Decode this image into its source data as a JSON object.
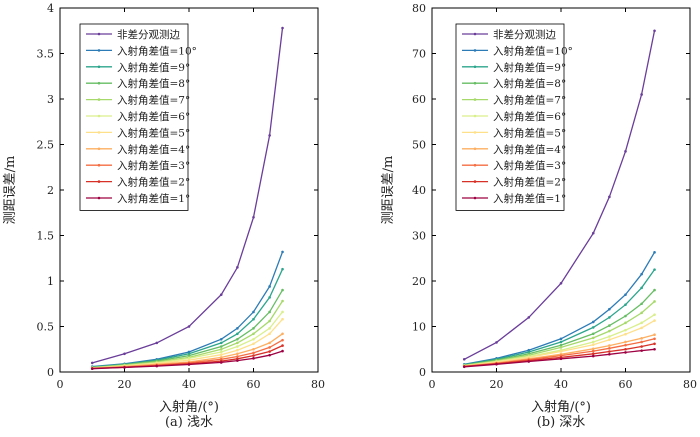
{
  "figure": {
    "width": 700,
    "height": 432
  },
  "chart_data": [
    {
      "type": "line",
      "caption": "(a) 浅水",
      "xlabel": "入射角/(°)",
      "ylabel": "测距误差/m",
      "xlim": [
        0,
        80
      ],
      "ylim": [
        0,
        4
      ],
      "xticks": [
        0,
        20,
        40,
        60,
        80
      ],
      "yticks": [
        0,
        0.5,
        1,
        1.5,
        2,
        2.5,
        3,
        3.5,
        4
      ],
      "yticklabels": [
        "0",
        "0.5",
        "1",
        "1.5",
        "2",
        "2.5",
        "3",
        "3.5",
        "4"
      ],
      "legend_position": "top-left",
      "x": [
        10,
        20,
        30,
        40,
        50,
        55,
        60,
        65,
        69
      ],
      "series": [
        {
          "name": "非差分观测边",
          "color": "#6a3d9a",
          "values": [
            0.1,
            0.2,
            0.32,
            0.5,
            0.85,
            1.15,
            1.7,
            2.6,
            3.78
          ]
        },
        {
          "name": "入射角差值=10°",
          "color": "#2c7bb6",
          "values": [
            0.06,
            0.09,
            0.14,
            0.22,
            0.36,
            0.48,
            0.66,
            0.94,
            1.32
          ]
        },
        {
          "name": "入射角差值=9°",
          "color": "#2ca58d",
          "values": [
            0.055,
            0.085,
            0.13,
            0.2,
            0.32,
            0.42,
            0.58,
            0.82,
            1.13
          ]
        },
        {
          "name": "入射角差值=8°",
          "color": "#66bd63",
          "values": [
            0.05,
            0.08,
            0.12,
            0.18,
            0.28,
            0.36,
            0.48,
            0.66,
            0.9
          ]
        },
        {
          "name": "入射角差值=7°",
          "color": "#a6d96a",
          "values": [
            0.048,
            0.075,
            0.11,
            0.16,
            0.25,
            0.32,
            0.42,
            0.56,
            0.78
          ]
        },
        {
          "name": "入射角差值=6°",
          "color": "#d9ef8b",
          "values": [
            0.046,
            0.07,
            0.1,
            0.15,
            0.22,
            0.28,
            0.36,
            0.48,
            0.66
          ]
        },
        {
          "name": "入射角差值=5°",
          "color": "#fee08b",
          "values": [
            0.044,
            0.065,
            0.095,
            0.13,
            0.19,
            0.24,
            0.31,
            0.42,
            0.58
          ]
        },
        {
          "name": "入射角差值=4°",
          "color": "#fdae61",
          "values": [
            0.042,
            0.06,
            0.085,
            0.11,
            0.16,
            0.2,
            0.25,
            0.32,
            0.42
          ]
        },
        {
          "name": "入射角差值=3°",
          "color": "#f46d43",
          "values": [
            0.04,
            0.055,
            0.075,
            0.1,
            0.14,
            0.17,
            0.21,
            0.27,
            0.35
          ]
        },
        {
          "name": "入射角差值=2°",
          "color": "#d73027",
          "values": [
            0.038,
            0.052,
            0.07,
            0.09,
            0.12,
            0.145,
            0.18,
            0.225,
            0.29
          ]
        },
        {
          "name": "入射角差值=1°",
          "color": "#9e0142",
          "values": [
            0.036,
            0.05,
            0.065,
            0.082,
            0.105,
            0.125,
            0.15,
            0.185,
            0.23
          ]
        }
      ]
    },
    {
      "type": "line",
      "caption": "(b) 深水",
      "xlabel": "入射角/(°)",
      "ylabel": "测距误差/m",
      "xlim": [
        0,
        80
      ],
      "ylim": [
        0,
        80
      ],
      "xticks": [
        0,
        20,
        40,
        60,
        80
      ],
      "yticks": [
        0,
        10,
        20,
        30,
        40,
        50,
        60,
        70,
        80
      ],
      "yticklabels": [
        "0",
        "10",
        "20",
        "30",
        "40",
        "50",
        "60",
        "70",
        "80"
      ],
      "legend_position": "top-left",
      "x": [
        10,
        20,
        30,
        40,
        50,
        55,
        60,
        65,
        69
      ],
      "series": [
        {
          "name": "非差分观测边",
          "color": "#6a3d9a",
          "values": [
            2.8,
            6.5,
            12.0,
            19.5,
            30.5,
            38.5,
            48.5,
            61.0,
            75.0
          ]
        },
        {
          "name": "入射角差值=10°",
          "color": "#2c7bb6",
          "values": [
            1.7,
            3.0,
            4.8,
            7.3,
            11.0,
            13.8,
            17.0,
            21.5,
            26.3
          ]
        },
        {
          "name": "入射角差值=9°",
          "color": "#2ca58d",
          "values": [
            1.6,
            2.8,
            4.4,
            6.6,
            9.8,
            12.0,
            14.8,
            18.5,
            22.5
          ]
        },
        {
          "name": "入射角差值=8°",
          "color": "#66bd63",
          "values": [
            1.5,
            2.6,
            4.0,
            5.9,
            8.4,
            10.2,
            12.3,
            15.0,
            18.0
          ]
        },
        {
          "name": "入射角差值=7°",
          "color": "#a6d96a",
          "values": [
            1.45,
            2.45,
            3.7,
            5.4,
            7.5,
            9.0,
            10.8,
            13.0,
            15.5
          ]
        },
        {
          "name": "入射角差值=6°",
          "color": "#d9ef8b",
          "values": [
            1.4,
            2.3,
            3.4,
            4.8,
            6.6,
            7.8,
            9.2,
            10.8,
            12.6
          ]
        },
        {
          "name": "入射角差值=5°",
          "color": "#fee08b",
          "values": [
            1.35,
            2.2,
            3.2,
            4.5,
            6.0,
            7.1,
            8.3,
            9.7,
            11.3
          ]
        },
        {
          "name": "入射角差值=4°",
          "color": "#fdae61",
          "values": [
            1.3,
            2.0,
            2.9,
            3.9,
            5.1,
            5.8,
            6.6,
            7.4,
            8.2
          ]
        },
        {
          "name": "入射角差值=3°",
          "color": "#f46d43",
          "values": [
            1.25,
            1.9,
            2.7,
            3.6,
            4.6,
            5.2,
            5.9,
            6.6,
            7.3
          ]
        },
        {
          "name": "入射角差值=2°",
          "color": "#d73027",
          "values": [
            1.2,
            1.8,
            2.5,
            3.2,
            4.0,
            4.5,
            5.0,
            5.6,
            6.2
          ]
        },
        {
          "name": "入射角差值=1°",
          "color": "#9e0142",
          "values": [
            1.15,
            1.7,
            2.3,
            2.9,
            3.5,
            3.9,
            4.3,
            4.7,
            5.0
          ]
        }
      ]
    }
  ]
}
